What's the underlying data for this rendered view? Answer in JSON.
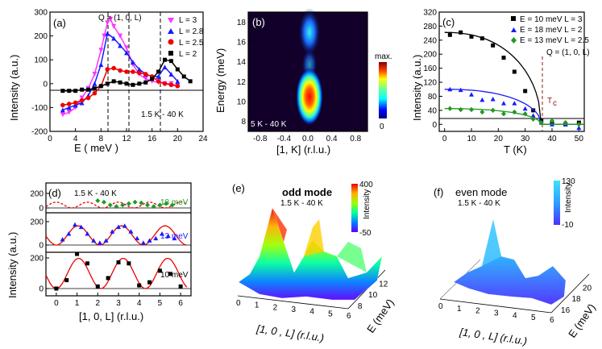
{
  "panels": {
    "a": {
      "label": "(a)",
      "q_label": "Q = (1, 0, L)",
      "temp_label": "1.5 K - 40 K",
      "xlabel": "E ( meV )",
      "ylabel": "Intensity (a.u.)",
      "xticks": [
        "0",
        "4",
        "8",
        "12",
        "16",
        "20",
        "24"
      ],
      "yticks": [
        "-200",
        "-100",
        "0",
        "100",
        "200",
        "300"
      ],
      "legend": [
        "L = 3",
        "L = 2.8",
        "L = 2.5",
        "L = 2"
      ]
    },
    "b": {
      "label": "(b)",
      "temp_label": "5 K - 40 K",
      "xlabel": "[1, K] (r.l.u.)",
      "ylabel": "Energy (meV)",
      "xticks": [
        "-0.8",
        "-0.4",
        "0.0",
        "0.4",
        "0.8"
      ],
      "yticks": [
        "8",
        "10",
        "12",
        "14",
        "16",
        "18"
      ],
      "cbar_max": "max.",
      "cbar_min": "0"
    },
    "c": {
      "label": "(c)",
      "q_label": "Q = (1, 0, L)",
      "tc_label": "T",
      "tc_sub": "c",
      "xlabel": "T (K)",
      "ylabel": "Intensity (a.u.)",
      "xticks": [
        "0",
        "10",
        "20",
        "30",
        "40",
        "50"
      ],
      "yticks": [
        "0",
        "40",
        "80",
        "120",
        "160",
        "200",
        "240",
        "280",
        "320"
      ],
      "legend": [
        "E = 10 meV  L = 3",
        "E = 18 meV  L = 2",
        "E = 13 meV  L = 2.5"
      ]
    },
    "d": {
      "label": "(d)",
      "temp_label": "1.5 K - 40 K",
      "xlabel": "[1, 0, L] (r.l.u.)",
      "ylabel": "Intensity (a.u.)",
      "xticks": [
        "0",
        "1",
        "2",
        "3",
        "4",
        "5",
        "6"
      ],
      "yticks_top": [
        "0",
        "200"
      ],
      "yticks_mid": [
        "0",
        "200"
      ],
      "yticks_bot": [
        "0",
        "200"
      ],
      "energies": [
        "18 meV",
        "13 meV",
        "10 meV"
      ]
    },
    "e": {
      "label": "(e)",
      "title1": "odd mode",
      "title2": "1.5 K - 40 K",
      "cbar_label": "Intensity",
      "cbar_max": "400",
      "cbar_min": "-50",
      "xlabel": "[1, 0 , L] (r.l.u.)",
      "ylabel": "E (meV)",
      "xticks": [
        "0",
        "1",
        "2",
        "3",
        "4",
        "5",
        "6"
      ],
      "yticks": [
        "8",
        "10",
        "12"
      ]
    },
    "f": {
      "label": "(f)",
      "title1": "even mode",
      "title2": "1.5 K - 40 K",
      "cbar_label": "Intensity",
      "cbar_max": "130",
      "cbar_min": "-10",
      "xlabel": "[1, 0 , L] (r.l.u.)",
      "ylabel": "E (meV)",
      "xticks": [
        "0",
        "1",
        "2",
        "3",
        "4",
        "5",
        "6"
      ],
      "yticks": [
        "16",
        "18",
        "20"
      ]
    }
  },
  "colors": {
    "magenta": "#ff33ff",
    "blue": "#1a1aff",
    "red": "#ee0000",
    "black": "#000000",
    "green": "#229922",
    "darkred": "#8b1a1a"
  },
  "chart_data": [
    {
      "type": "line",
      "panel": "a",
      "xlim": [
        0,
        24
      ],
      "ylim": [
        -200,
        300
      ],
      "series": [
        {
          "name": "L = 3",
          "x": [
            2,
            3,
            4,
            5,
            6,
            7,
            8,
            8.5,
            9,
            9.5,
            10,
            11,
            12,
            13,
            14,
            15,
            16,
            17,
            18,
            19,
            20
          ],
          "y": [
            -130,
            -120,
            -100,
            -60,
            -20,
            40,
            140,
            200,
            255,
            270,
            240,
            200,
            150,
            80,
            40,
            20,
            10,
            5,
            0,
            0,
            -10
          ]
        },
        {
          "name": "L = 2.8",
          "x": [
            2,
            3,
            4,
            5,
            6,
            7,
            8,
            9,
            10,
            11,
            12,
            13,
            14,
            15,
            16,
            17,
            18,
            19,
            20
          ],
          "y": [
            -110,
            -100,
            -90,
            -80,
            -50,
            0,
            80,
            210,
            190,
            160,
            130,
            90,
            60,
            40,
            30,
            30,
            70,
            40,
            10
          ]
        },
        {
          "name": "L = 2.5",
          "x": [
            2,
            3,
            4,
            5,
            6,
            7,
            8,
            9,
            10,
            11,
            12,
            13,
            14,
            15,
            16,
            17,
            18,
            19,
            20
          ],
          "y": [
            -90,
            -85,
            -80,
            -70,
            -60,
            -40,
            -10,
            60,
            65,
            55,
            50,
            50,
            45,
            40,
            30,
            10,
            0,
            -5,
            -10
          ]
        },
        {
          "name": "L = 2",
          "x": [
            2,
            3,
            4,
            5,
            6,
            7,
            8,
            9,
            10,
            11,
            12,
            13,
            14,
            15,
            16,
            17,
            18,
            19,
            20,
            21,
            22
          ],
          "y": [
            -30,
            -30,
            -30,
            -25,
            -25,
            -20,
            -10,
            0,
            10,
            5,
            0,
            -5,
            0,
            5,
            20,
            50,
            100,
            95,
            60,
            30,
            10
          ]
        }
      ]
    },
    {
      "type": "heatmap",
      "panel": "b",
      "xlim": [
        -1.0,
        1.0
      ],
      "ylim": [
        7,
        19
      ]
    },
    {
      "type": "scatter",
      "panel": "c",
      "xlim": [
        0,
        52
      ],
      "ylim": [
        -20,
        320
      ],
      "series": [
        {
          "name": "E = 10 meV  L = 3",
          "x": [
            2,
            6,
            10,
            14,
            18,
            22,
            26,
            30,
            33,
            36,
            40,
            45,
            50
          ],
          "y": [
            255,
            262,
            250,
            245,
            225,
            190,
            150,
            95,
            40,
            10,
            5,
            0,
            5
          ]
        },
        {
          "name": "E = 18 meV  L = 2",
          "x": [
            2,
            6,
            10,
            14,
            18,
            22,
            26,
            30,
            33,
            36,
            40,
            45,
            50
          ],
          "y": [
            100,
            98,
            85,
            70,
            72,
            60,
            60,
            45,
            25,
            5,
            0,
            0,
            -10
          ]
        },
        {
          "name": "E = 13 meV  L = 2.5",
          "x": [
            2,
            6,
            10,
            14,
            18,
            22,
            26,
            30,
            33,
            36,
            40,
            45,
            50
          ],
          "y": [
            45,
            42,
            42,
            35,
            40,
            30,
            35,
            30,
            15,
            5,
            10,
            5,
            0
          ]
        }
      ]
    },
    {
      "type": "scatter",
      "panel": "d",
      "xlim": [
        -0.5,
        6.5
      ],
      "series": [
        {
          "name": "18 meV",
          "x": [
            2,
            2.3,
            2.6,
            2.9,
            3.2,
            3.5,
            3.8,
            4.1,
            4.4,
            4.7,
            5.0,
            5.3,
            5.6
          ],
          "y": [
            100,
            80,
            40,
            20,
            40,
            60,
            80,
            70,
            40,
            20,
            40,
            60,
            40
          ]
        },
        {
          "name": "13 meV",
          "x": [
            0.3,
            0.6,
            0.9,
            1.2,
            1.5,
            1.8,
            2.1,
            2.4,
            2.7,
            3.0,
            3.3,
            3.6,
            3.9,
            4.2,
            4.5,
            4.8,
            5.1,
            5.4,
            5.7
          ],
          "y": [
            50,
            100,
            180,
            160,
            100,
            40,
            20,
            40,
            120,
            160,
            170,
            120,
            60,
            20,
            40,
            60,
            100,
            80,
            60
          ]
        },
        {
          "name": "10 meV",
          "x": [
            0,
            0.5,
            1,
            1.5,
            2,
            2.5,
            3,
            3.5,
            4,
            4.5,
            5,
            5.5,
            6
          ],
          "y": [
            0,
            80,
            330,
            240,
            20,
            100,
            250,
            240,
            30,
            60,
            170,
            140,
            20
          ]
        }
      ]
    }
  ]
}
